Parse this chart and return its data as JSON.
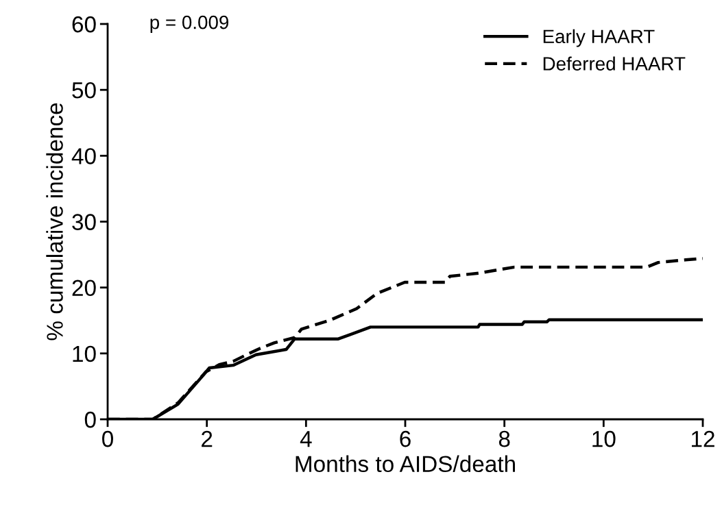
{
  "chart_data": {
    "type": "line",
    "xlabel": "Months to AIDS/death",
    "ylabel": "% cumulative incidence",
    "annotations": [
      "p = 0.009"
    ],
    "xlim": [
      0,
      12
    ],
    "ylim": [
      0,
      60
    ],
    "xticks": [
      0,
      2,
      4,
      6,
      8,
      10,
      12
    ],
    "yticks": [
      0,
      10,
      20,
      30,
      40,
      50,
      60
    ],
    "grid": false,
    "legend": "top right",
    "marker": "none",
    "series": [
      {
        "name": "Early HAART",
        "color": "#000000",
        "line_style": "solid",
        "x": [
          0,
          0.91,
          1.42,
          1.94,
          2.05,
          2.53,
          2.99,
          3.6,
          3.77,
          4.65,
          5.3,
          7.47,
          7.5,
          8.36,
          8.4,
          8.86,
          8.9,
          12
        ],
        "values": [
          0,
          0,
          2.3,
          6.8,
          7.8,
          8.2,
          9.8,
          10.6,
          12.2,
          12.2,
          14.0,
          14.0,
          14.4,
          14.4,
          14.8,
          14.8,
          15.1,
          15.1
        ]
      },
      {
        "name": "Deferred HAART",
        "color": "#000000",
        "line_style": "dashed",
        "x": [
          0,
          0.91,
          1.42,
          1.98,
          2.25,
          2.53,
          2.8,
          3.08,
          3.36,
          3.77,
          3.91,
          4.47,
          5.02,
          5.43,
          5.99,
          6.8,
          6.9,
          7.5,
          8.2,
          10.87,
          11.1,
          11.65,
          12
        ],
        "values": [
          0,
          0,
          2.5,
          7.2,
          8.3,
          8.8,
          9.8,
          10.8,
          11.6,
          12.4,
          13.7,
          15.0,
          16.8,
          19.1,
          20.8,
          20.8,
          21.7,
          22.2,
          23.1,
          23.1,
          23.8,
          24.2,
          24.4
        ]
      }
    ]
  }
}
